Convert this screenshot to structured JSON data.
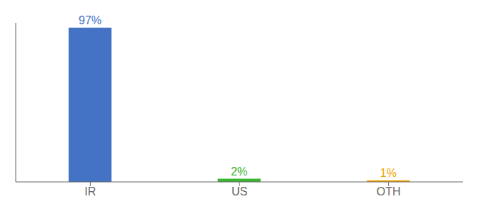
{
  "chart_data": {
    "type": "bar",
    "categories": [
      "IR",
      "US",
      "OTH"
    ],
    "values": [
      97,
      2,
      1
    ],
    "value_labels": [
      "97%",
      "2%",
      "1%"
    ],
    "colors": [
      "#4472c4",
      "#3cb534",
      "#f0a500"
    ],
    "ylim": [
      0,
      100
    ],
    "grid": false,
    "data_labels": true,
    "tick_labels": "x"
  }
}
